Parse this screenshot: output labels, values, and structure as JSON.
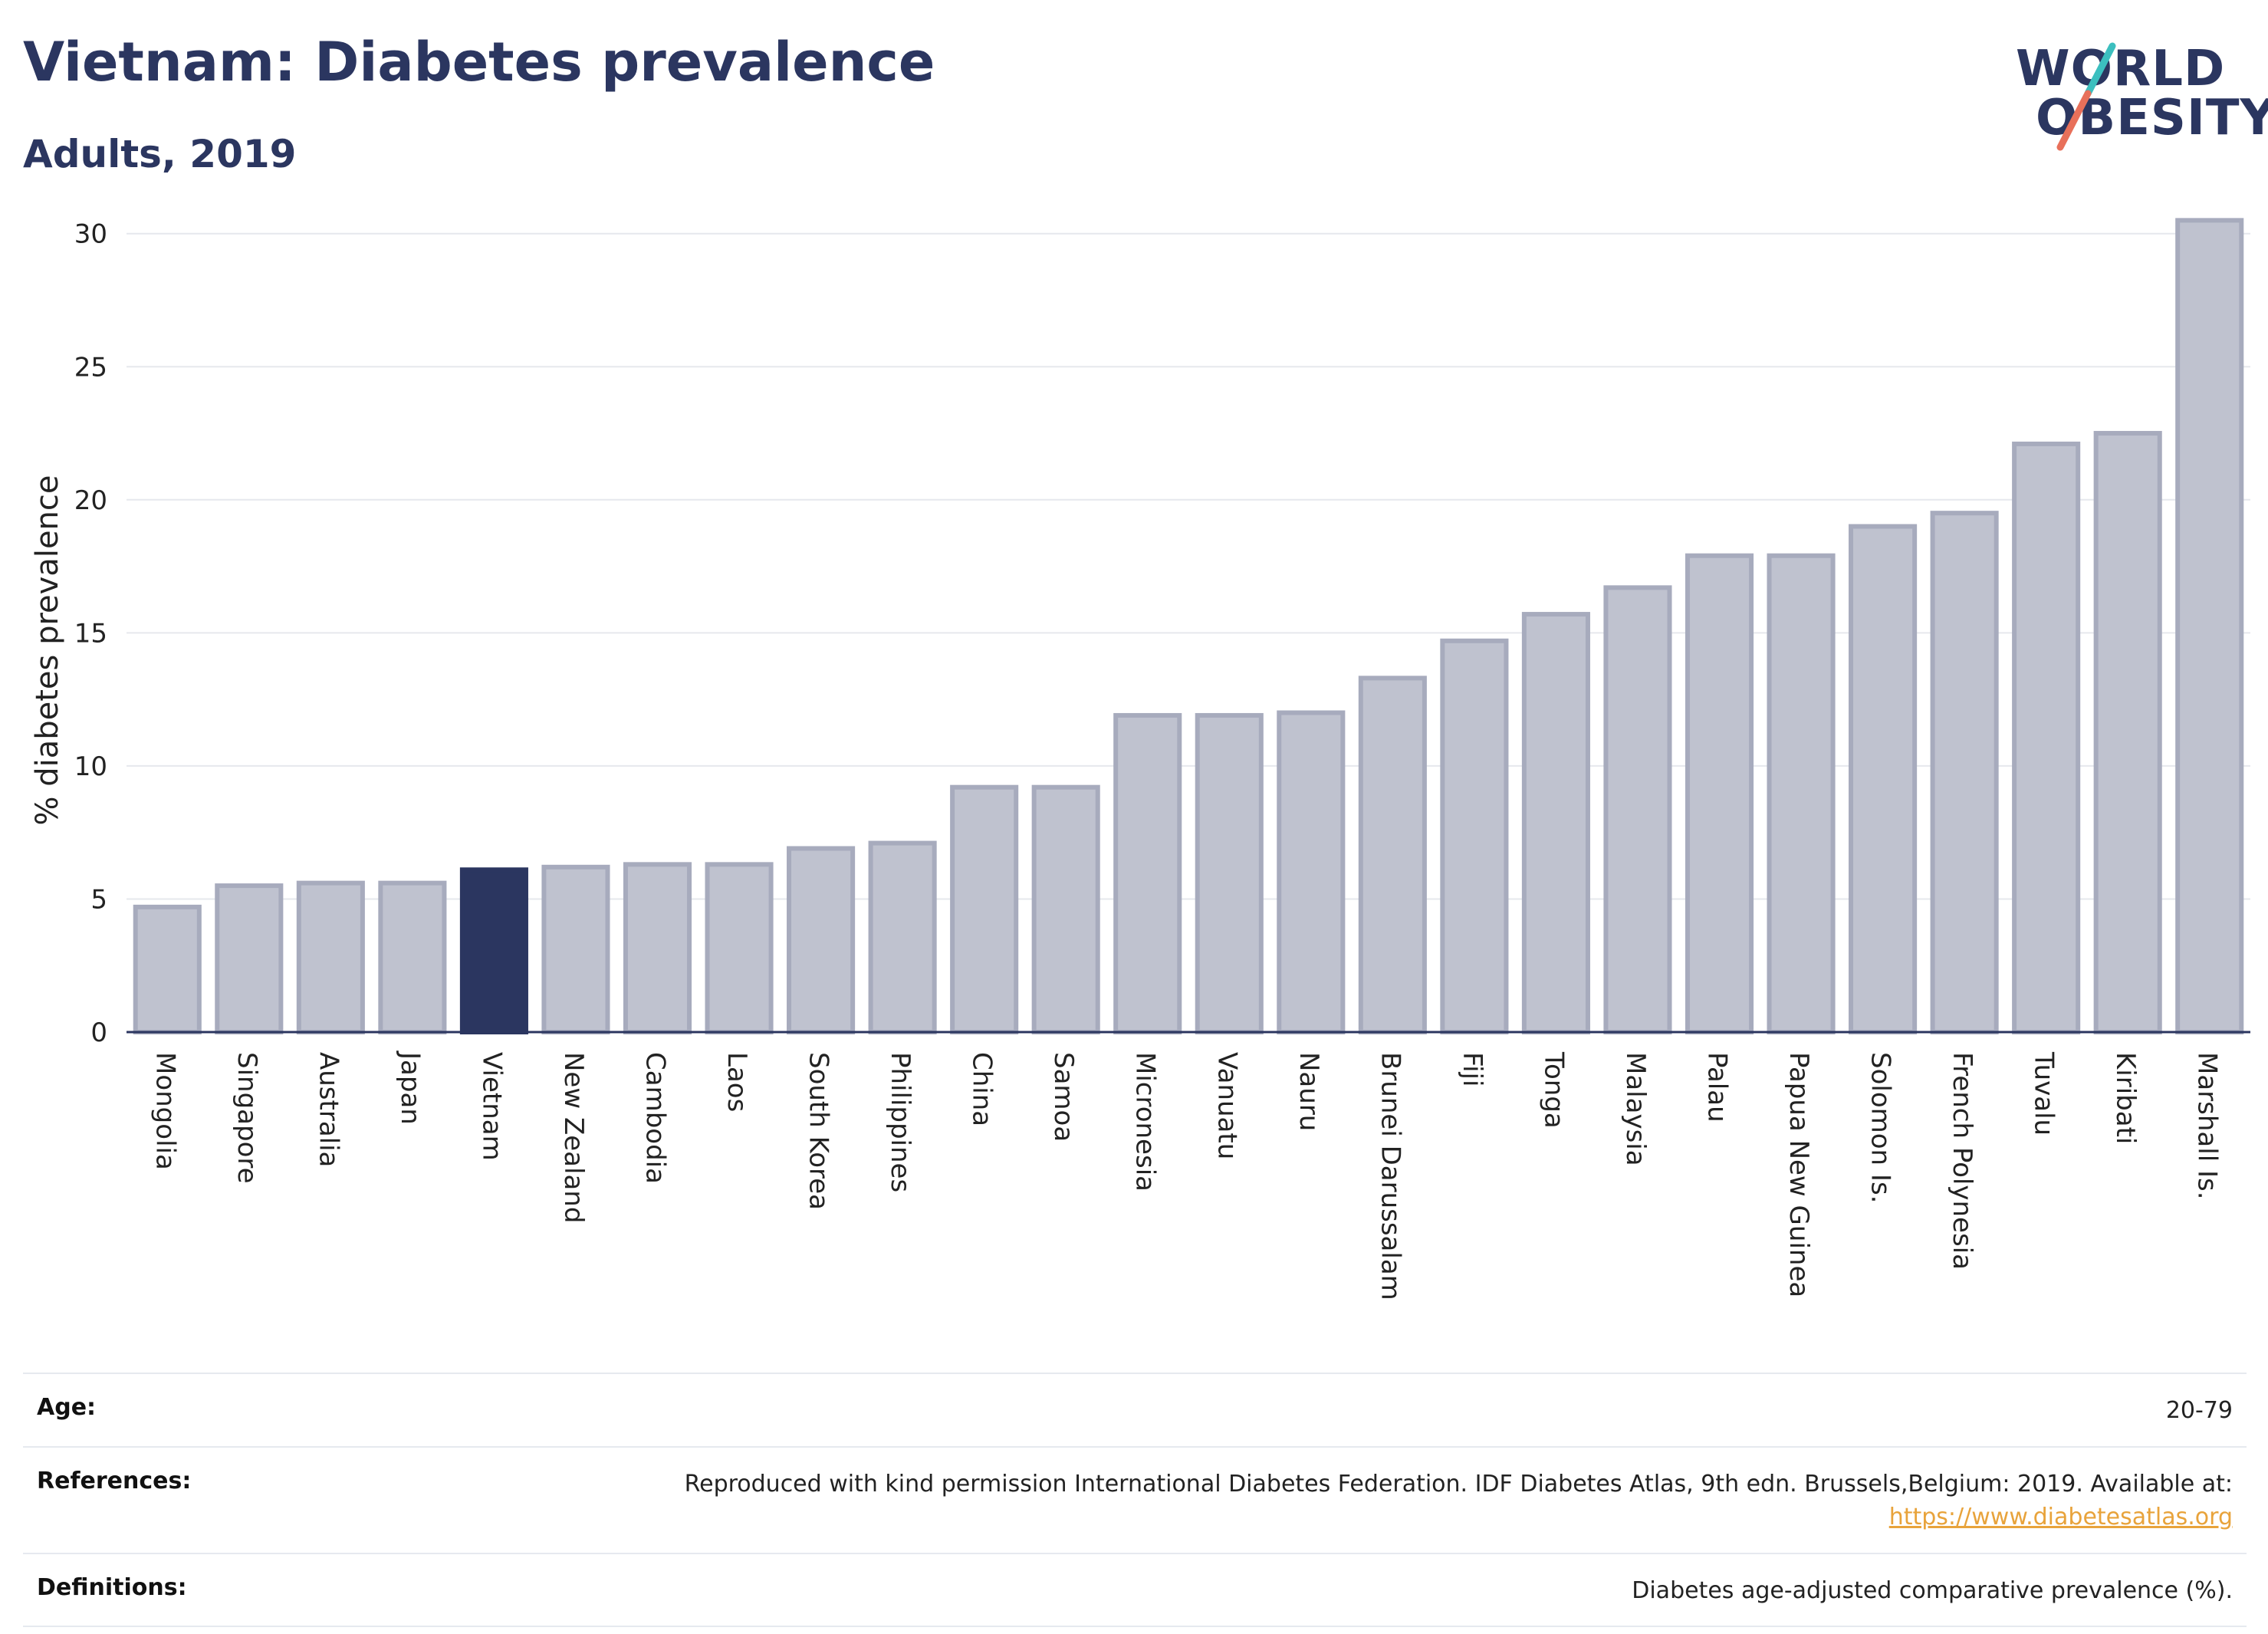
{
  "header": {
    "title": "Vietnam: Diabetes prevalence",
    "subtitle": "Adults, 2019"
  },
  "logo": {
    "line1": "WORLD",
    "line2": "OBESITY",
    "slash_colors": [
      "#3cbfbf",
      "#e8705a"
    ]
  },
  "colors": {
    "bar": "#bfc2cf",
    "bar_stroke": "#a7abbd",
    "highlight": "#2b3660",
    "grid": "#e6e8ed",
    "axis": "#2b3660",
    "link": "#e8a33b"
  },
  "chart_data": {
    "type": "bar",
    "title": "Vietnam: Diabetes prevalence",
    "subtitle": "Adults, 2019",
    "xlabel": "",
    "ylabel": "% diabetes prevalence",
    "ylim": [
      0,
      31
    ],
    "yticks": [
      0,
      5,
      10,
      15,
      20,
      25,
      30
    ],
    "grid": true,
    "highlight": "Vietnam",
    "categories": [
      "Mongolia",
      "Singapore",
      "Australia",
      "Japan",
      "Vietnam",
      "New Zealand",
      "Cambodia",
      "Laos",
      "South Korea",
      "Philippines",
      "China",
      "Samoa",
      "Micronesia",
      "Vanuatu",
      "Nauru",
      "Brunei Darussalam",
      "Fiji",
      "Tonga",
      "Malaysia",
      "Palau",
      "Papua New Guinea",
      "Solomon Is.",
      "French Polynesia",
      "Tuvalu",
      "Kiribati",
      "Marshall Is."
    ],
    "values": [
      4.7,
      5.5,
      5.6,
      5.6,
      6.1,
      6.2,
      6.3,
      6.3,
      6.9,
      7.1,
      9.2,
      9.2,
      11.9,
      11.9,
      12.0,
      13.3,
      14.7,
      15.7,
      16.7,
      17.9,
      17.9,
      19.0,
      19.5,
      22.1,
      22.5,
      30.5
    ]
  },
  "info_table": [
    {
      "label": "Age:",
      "value": "20-79",
      "link": ""
    },
    {
      "label": "References:",
      "value": "Reproduced with kind permission International Diabetes Federation. IDF Diabetes Atlas, 9th edn. Brussels,Belgium: 2019. Available at:",
      "link": "https://www.diabetesatlas.org"
    },
    {
      "label": "Definitions:",
      "value": "Diabetes age-adjusted comparative prevalence (%).",
      "link": ""
    }
  ]
}
